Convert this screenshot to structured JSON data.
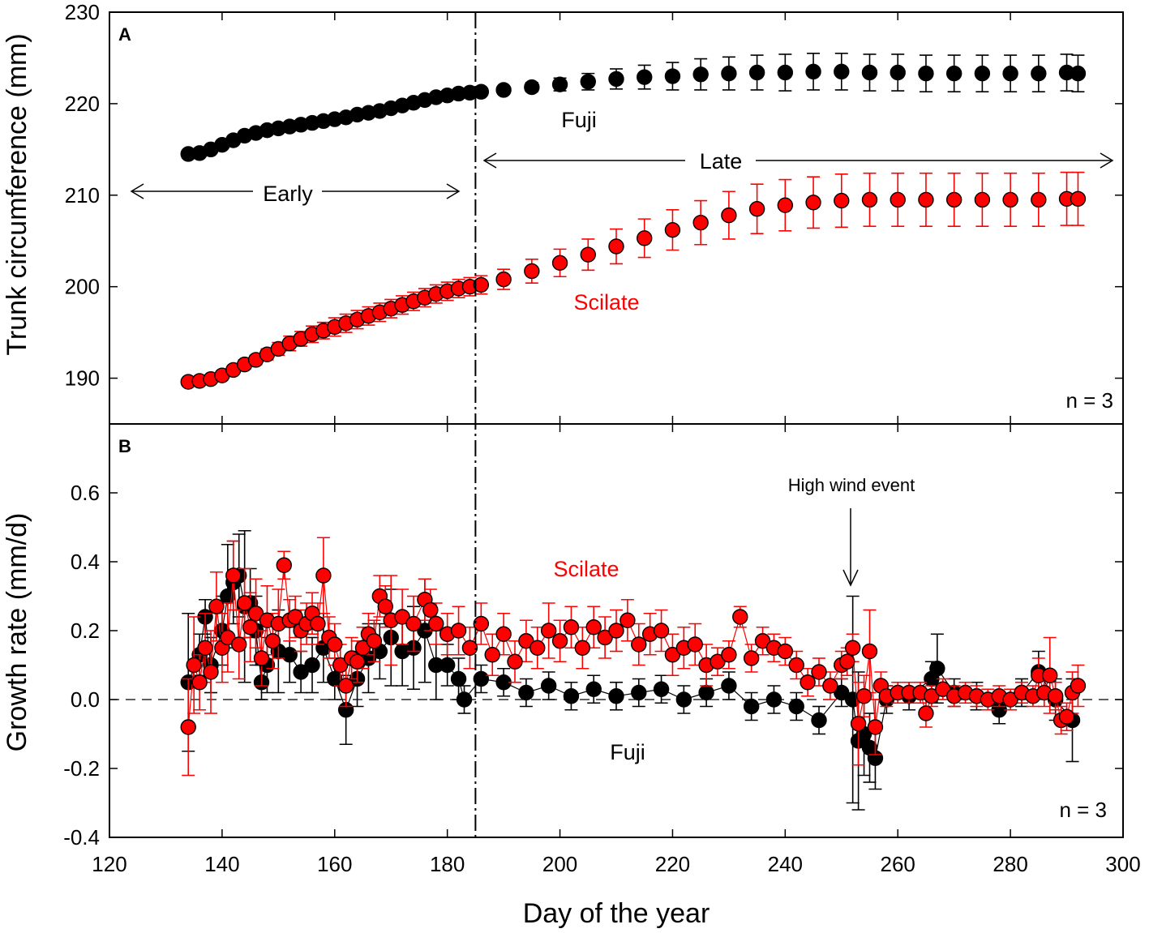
{
  "colors": {
    "fuji": "#000000",
    "scilate": "#ff0000",
    "axis": "#000000"
  },
  "chart_data": [
    {
      "type": "scatter",
      "panel_label": "A",
      "ylabel": "Trunk circumference (mm)",
      "xlabel": "",
      "xlim": [
        120,
        300
      ],
      "ylim": [
        185,
        230
      ],
      "yticks": [
        "190",
        "200",
        "210",
        "220",
        "230"
      ],
      "ytick_values": [
        190,
        200,
        210,
        220,
        230
      ],
      "n_label": "n = 3",
      "boundary_day": 185,
      "annotations": {
        "early": "Early",
        "late": "Late",
        "fuji": "Fuji",
        "scilate": "Scilate"
      },
      "series": [
        {
          "name": "Fuji",
          "x": [
            134,
            136,
            138,
            140,
            142,
            144,
            146,
            148,
            150,
            152,
            154,
            156,
            158,
            160,
            162,
            164,
            166,
            168,
            170,
            172,
            174,
            176,
            178,
            180,
            182,
            184,
            186,
            190,
            195,
            200,
            205,
            210,
            215,
            220,
            225,
            230,
            235,
            240,
            245,
            250,
            255,
            260,
            265,
            270,
            275,
            280,
            285,
            290,
            292
          ],
          "y": [
            214.5,
            214.6,
            215.0,
            215.5,
            216.0,
            216.5,
            216.8,
            217.1,
            217.3,
            217.5,
            217.7,
            217.9,
            218.1,
            218.3,
            218.5,
            218.8,
            219.0,
            219.2,
            219.5,
            219.8,
            220.1,
            220.4,
            220.7,
            220.9,
            221.1,
            221.2,
            221.3,
            221.5,
            221.8,
            222.1,
            222.4,
            222.7,
            222.9,
            223.0,
            223.2,
            223.3,
            223.4,
            223.4,
            223.5,
            223.5,
            223.4,
            223.4,
            223.3,
            223.3,
            223.3,
            223.3,
            223.3,
            223.4,
            223.3
          ],
          "err": [
            0.3,
            0.3,
            0.3,
            0.3,
            0.3,
            0.3,
            0.3,
            0.3,
            0.3,
            0.3,
            0.3,
            0.3,
            0.3,
            0.3,
            0.3,
            0.3,
            0.3,
            0.3,
            0.3,
            0.3,
            0.3,
            0.3,
            0.3,
            0.3,
            0.3,
            0.3,
            0.3,
            0.4,
            0.5,
            0.7,
            0.9,
            1.1,
            1.3,
            1.5,
            1.7,
            1.8,
            1.9,
            2.0,
            2.0,
            2.0,
            2.0,
            2.0,
            2.0,
            2.0,
            2.0,
            2.0,
            2.0,
            2.0,
            2.0
          ]
        },
        {
          "name": "Scilate",
          "x": [
            134,
            136,
            138,
            140,
            142,
            144,
            146,
            148,
            150,
            152,
            154,
            156,
            158,
            160,
            162,
            164,
            166,
            168,
            170,
            172,
            174,
            176,
            178,
            180,
            182,
            184,
            186,
            190,
            195,
            200,
            205,
            210,
            215,
            220,
            225,
            230,
            235,
            240,
            245,
            250,
            255,
            260,
            265,
            270,
            275,
            280,
            285,
            290,
            292
          ],
          "y": [
            189.6,
            189.7,
            189.9,
            190.3,
            190.9,
            191.5,
            192.0,
            192.6,
            193.2,
            193.8,
            194.3,
            194.8,
            195.2,
            195.6,
            196.0,
            196.4,
            196.8,
            197.2,
            197.6,
            198.0,
            198.4,
            198.8,
            199.2,
            199.5,
            199.8,
            200.0,
            200.2,
            200.8,
            201.7,
            202.6,
            203.5,
            204.4,
            205.3,
            206.2,
            207.0,
            207.8,
            208.5,
            208.9,
            209.2,
            209.4,
            209.5,
            209.5,
            209.5,
            209.5,
            209.5,
            209.5,
            209.5,
            209.6,
            209.6
          ],
          "err": [
            0.2,
            0.2,
            0.3,
            0.3,
            0.4,
            0.5,
            0.5,
            0.6,
            0.7,
            0.8,
            0.8,
            0.9,
            0.9,
            1.0,
            1.0,
            1.0,
            1.0,
            1.0,
            1.0,
            1.0,
            1.0,
            1.0,
            1.0,
            1.0,
            1.0,
            1.0,
            1.0,
            1.1,
            1.3,
            1.5,
            1.7,
            1.9,
            2.1,
            2.2,
            2.4,
            2.6,
            2.7,
            2.8,
            2.8,
            2.9,
            2.9,
            2.9,
            2.9,
            2.9,
            2.9,
            2.9,
            2.9,
            2.9,
            2.9
          ]
        }
      ]
    },
    {
      "type": "scatter",
      "panel_label": "B",
      "ylabel": "Growth rate (mm/d)",
      "xlabel": "Day of the year",
      "xlim": [
        120,
        300
      ],
      "ylim": [
        -0.4,
        0.8
      ],
      "xticks": [
        "120",
        "140",
        "160",
        "180",
        "200",
        "220",
        "240",
        "260",
        "280",
        "300"
      ],
      "xtick_values": [
        120,
        140,
        160,
        180,
        200,
        220,
        240,
        260,
        280,
        300
      ],
      "yticks": [
        "-0.4",
        "-0.2",
        "0.0",
        "0.2",
        "0.4",
        "0.6"
      ],
      "ytick_values": [
        -0.4,
        -0.2,
        0.0,
        0.2,
        0.4,
        0.6
      ],
      "n_label": "n = 3",
      "boundary_day": 185,
      "reference_line_y": 0,
      "annotations": {
        "wind": "High wind event",
        "wind_day": 252,
        "fuji": "Fuji",
        "scilate": "Scilate"
      },
      "series": [
        {
          "name": "Fuji",
          "x": [
            134,
            136,
            137,
            138,
            140,
            141,
            142,
            143,
            144,
            145,
            146,
            147,
            148,
            150,
            152,
            154,
            156,
            158,
            160,
            162,
            164,
            166,
            168,
            170,
            172,
            174,
            176,
            178,
            180,
            182,
            183,
            186,
            190,
            194,
            198,
            202,
            206,
            210,
            214,
            218,
            222,
            226,
            230,
            234,
            238,
            242,
            246,
            250,
            252,
            253,
            254,
            255,
            256,
            258,
            262,
            266,
            267,
            270,
            274,
            278,
            282,
            285,
            288,
            291
          ],
          "y": [
            0.05,
            0.13,
            0.24,
            0.1,
            0.2,
            0.3,
            0.34,
            0.36,
            0.27,
            0.28,
            0.2,
            0.05,
            0.1,
            0.14,
            0.13,
            0.08,
            0.1,
            0.15,
            0.06,
            -0.03,
            0.06,
            0.12,
            0.14,
            0.18,
            0.14,
            0.15,
            0.2,
            0.1,
            0.1,
            0.06,
            0.0,
            0.06,
            0.05,
            0.02,
            0.04,
            0.01,
            0.03,
            0.01,
            0.02,
            0.03,
            0.0,
            0.02,
            0.04,
            -0.02,
            0.0,
            -0.02,
            -0.06,
            0.02,
            0.0,
            -0.12,
            -0.1,
            -0.14,
            -0.17,
            0.0,
            0.01,
            0.06,
            0.09,
            0.02,
            0.01,
            -0.03,
            0.02,
            0.08,
            0.0,
            -0.06
          ],
          "err": [
            0.2,
            0.06,
            0.05,
            0.08,
            0.1,
            0.15,
            0.12,
            0.12,
            0.22,
            0.1,
            0.1,
            0.05,
            0.08,
            0.12,
            0.08,
            0.06,
            0.08,
            0.1,
            0.06,
            0.1,
            0.08,
            0.1,
            0.08,
            0.14,
            0.1,
            0.12,
            0.15,
            0.1,
            0.06,
            0.06,
            0.04,
            0.04,
            0.04,
            0.04,
            0.04,
            0.04,
            0.04,
            0.04,
            0.04,
            0.04,
            0.04,
            0.04,
            0.04,
            0.04,
            0.04,
            0.04,
            0.04,
            0.04,
            0.3,
            0.2,
            0.12,
            0.1,
            0.09,
            0.04,
            0.04,
            0.05,
            0.1,
            0.04,
            0.04,
            0.04,
            0.04,
            0.06,
            0.06,
            0.12
          ]
        },
        {
          "name": "Scilate",
          "x": [
            134,
            135,
            136,
            137,
            138,
            139,
            140,
            141,
            142,
            143,
            144,
            145,
            146,
            147,
            148,
            149,
            150,
            151,
            152,
            153,
            154,
            155,
            156,
            157,
            158,
            159,
            160,
            161,
            162,
            163,
            164,
            165,
            166,
            167,
            168,
            169,
            170,
            172,
            174,
            176,
            177,
            178,
            180,
            182,
            184,
            186,
            188,
            190,
            192,
            194,
            196,
            198,
            200,
            202,
            204,
            206,
            208,
            210,
            212,
            214,
            216,
            218,
            220,
            222,
            224,
            226,
            228,
            230,
            232,
            234,
            236,
            238,
            240,
            242,
            244,
            246,
            248,
            250,
            251,
            252,
            253,
            254,
            255,
            256,
            257,
            258,
            260,
            262,
            264,
            265,
            266,
            268,
            270,
            272,
            274,
            276,
            278,
            280,
            282,
            284,
            285,
            286,
            287,
            288,
            289,
            290,
            291,
            292
          ],
          "y": [
            -0.08,
            0.1,
            0.05,
            0.15,
            0.08,
            0.27,
            0.15,
            0.18,
            0.36,
            0.16,
            0.28,
            0.21,
            0.25,
            0.12,
            0.23,
            0.17,
            0.22,
            0.39,
            0.23,
            0.24,
            0.2,
            0.22,
            0.25,
            0.22,
            0.36,
            0.18,
            0.16,
            0.1,
            0.04,
            0.12,
            0.11,
            0.15,
            0.19,
            0.17,
            0.3,
            0.27,
            0.23,
            0.24,
            0.22,
            0.29,
            0.26,
            0.22,
            0.19,
            0.2,
            0.15,
            0.22,
            0.13,
            0.19,
            0.11,
            0.17,
            0.15,
            0.2,
            0.17,
            0.21,
            0.15,
            0.21,
            0.18,
            0.2,
            0.23,
            0.16,
            0.19,
            0.2,
            0.13,
            0.15,
            0.16,
            0.1,
            0.11,
            0.13,
            0.24,
            0.12,
            0.17,
            0.15,
            0.14,
            0.1,
            0.05,
            0.08,
            0.04,
            0.1,
            0.11,
            0.15,
            -0.07,
            0.01,
            0.14,
            -0.08,
            0.04,
            0.01,
            0.02,
            0.02,
            0.02,
            -0.04,
            0.01,
            0.03,
            0.01,
            0.02,
            0.01,
            0.0,
            0.01,
            0.0,
            0.02,
            0.01,
            0.07,
            0.02,
            0.07,
            0.01,
            -0.06,
            -0.05,
            0.02,
            0.04
          ],
          "err": [
            0.14,
            0.14,
            0.08,
            0.1,
            0.12,
            0.1,
            0.1,
            0.1,
            0.1,
            0.1,
            0.1,
            0.1,
            0.1,
            0.08,
            0.1,
            0.08,
            0.1,
            0.04,
            0.06,
            0.06,
            0.06,
            0.06,
            0.06,
            0.06,
            0.11,
            0.06,
            0.06,
            0.06,
            0.06,
            0.06,
            0.06,
            0.06,
            0.06,
            0.06,
            0.06,
            0.06,
            0.13,
            0.08,
            0.08,
            0.06,
            0.06,
            0.06,
            0.06,
            0.07,
            0.06,
            0.06,
            0.06,
            0.06,
            0.06,
            0.06,
            0.06,
            0.08,
            0.06,
            0.06,
            0.06,
            0.06,
            0.06,
            0.06,
            0.06,
            0.06,
            0.06,
            0.06,
            0.06,
            0.06,
            0.06,
            0.06,
            0.04,
            0.04,
            0.03,
            0.04,
            0.04,
            0.04,
            0.04,
            0.04,
            0.04,
            0.04,
            0.04,
            0.04,
            0.04,
            0.04,
            0.12,
            0.06,
            0.12,
            0.08,
            0.04,
            0.03,
            0.03,
            0.03,
            0.03,
            0.04,
            0.03,
            0.03,
            0.03,
            0.03,
            0.03,
            0.03,
            0.03,
            0.03,
            0.03,
            0.03,
            0.05,
            0.04,
            0.11,
            0.04,
            0.04,
            0.04,
            0.06,
            0.06
          ]
        }
      ]
    }
  ]
}
